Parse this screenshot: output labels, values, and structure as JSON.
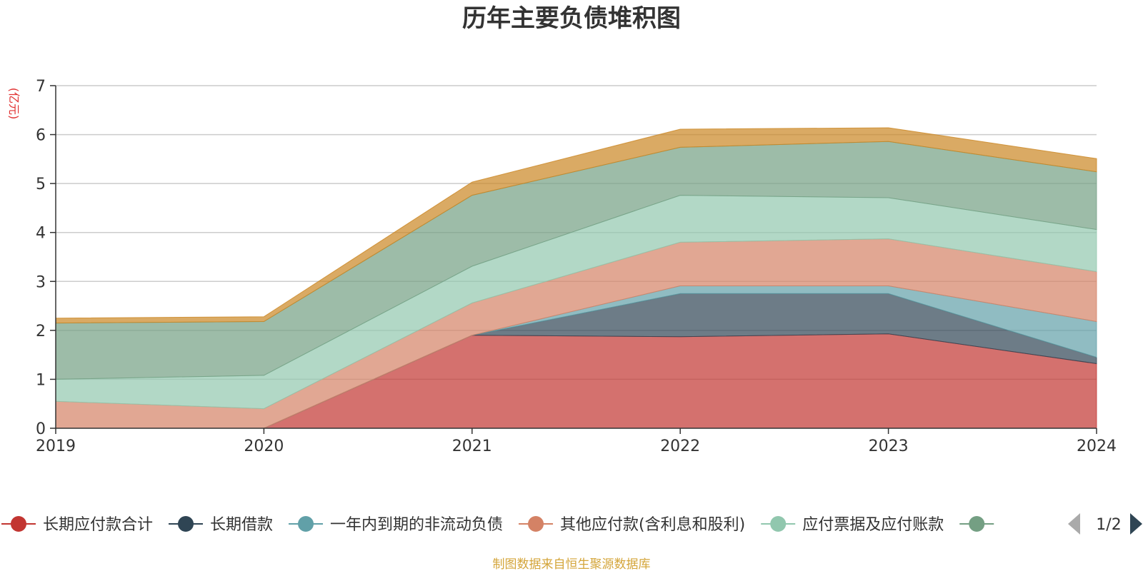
{
  "chart_data": {
    "type": "area",
    "title": "历年主要负债堆积图",
    "unit_label": "(亿元)",
    "x": [
      "2019",
      "2020",
      "2021",
      "2022",
      "2023",
      "2024"
    ],
    "ylim": [
      0,
      7
    ],
    "yticks": [
      "0",
      "1",
      "2",
      "3",
      "4",
      "5",
      "6",
      "7"
    ],
    "stacked": true,
    "grid": true,
    "legend_position": "bottom",
    "series": [
      {
        "name": "长期应付款合计",
        "color": "#c23531",
        "values": [
          0,
          0,
          1.9,
          1.87,
          1.93,
          1.32
        ]
      },
      {
        "name": "长期借款",
        "color": "#2f4554",
        "values": [
          0,
          0,
          0,
          0.88,
          0.82,
          0.13
        ]
      },
      {
        "name": "一年内到期的非流动负债",
        "color": "#61a0a8",
        "values": [
          0,
          0,
          0,
          0.16,
          0.16,
          0.73
        ]
      },
      {
        "name": "其他应付款(含利息和股利)",
        "color": "#d48265",
        "values": [
          0.55,
          0.4,
          0.66,
          0.89,
          0.96,
          1.02
        ]
      },
      {
        "name": "应付票据及应付账款",
        "color": "#91c7ae",
        "values": [
          0.45,
          0.68,
          0.75,
          0.96,
          0.84,
          0.86
        ]
      },
      {
        "name": "",
        "color": "#749f83",
        "values": [
          1.15,
          1.1,
          1.45,
          0.98,
          1.15,
          1.18
        ]
      },
      {
        "name": "",
        "color": "#ca8622",
        "values": [
          0.1,
          0.1,
          0.27,
          0.37,
          0.28,
          0.27
        ]
      }
    ],
    "legend_visible_count": 6,
    "legend_page": "1/2"
  },
  "footer": {
    "source": "制图数据来自恒生聚源数据库"
  }
}
